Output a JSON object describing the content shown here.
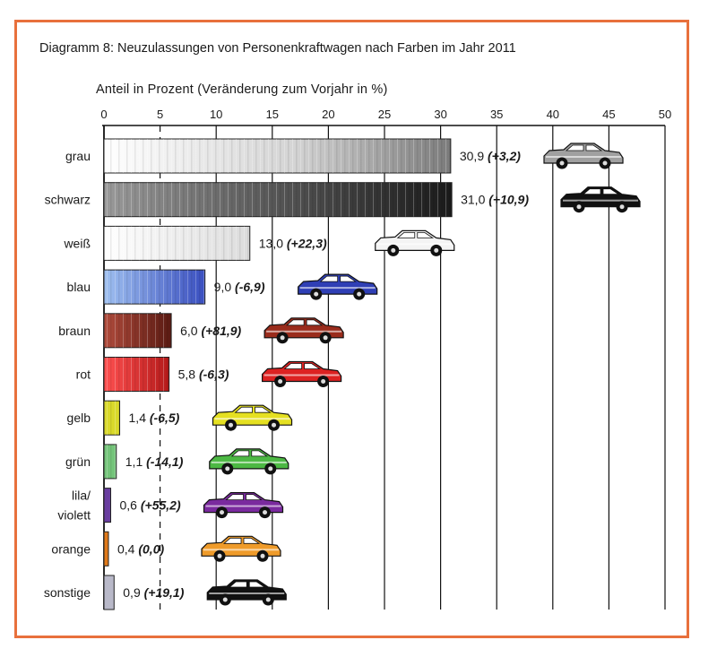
{
  "chart_data": {
    "type": "bar",
    "orientation": "horizontal",
    "title": "Diagramm 8:  Neuzulassungen von Personenkraftwagen nach Farben im Jahr 2011",
    "xlabel": "Anteil in Prozent (Veränderung zum Vorjahr in %)",
    "ylabel": "",
    "xlim": [
      0,
      50
    ],
    "ticks": [
      "0",
      "5",
      "10",
      "15",
      "20",
      "25",
      "30",
      "35",
      "40",
      "45",
      "50"
    ],
    "grid": true,
    "categories": [
      {
        "label": [
          "grau"
        ],
        "value": 30.9,
        "value_text": "30,9",
        "change_text": "(+3,2)",
        "color": "#9a9a9a",
        "car": "#a0a0a0"
      },
      {
        "label": [
          "schwarz"
        ],
        "value": 31.0,
        "value_text": "31,0",
        "change_text": "(+10,9)",
        "color": "#3a3a3a",
        "car": "#111111"
      },
      {
        "label": [
          "weiß"
        ],
        "value": 13.0,
        "value_text": "13,0",
        "change_text": "(+22,3)",
        "color": "#e6e6e6",
        "car": "#f4f4f4"
      },
      {
        "label": [
          "blau"
        ],
        "value": 9.0,
        "value_text": "9,0",
        "change_text": "(-6,9)",
        "color": "#5d7fd6",
        "car": "#2f3fb5"
      },
      {
        "label": [
          "braun"
        ],
        "value": 6.0,
        "value_text": "6,0",
        "change_text": "(+81,9)",
        "color": "#8a2a22",
        "car": "#9a2c1c"
      },
      {
        "label": [
          "rot"
        ],
        "value": 5.8,
        "value_text": "5,8",
        "change_text": "(-6,3)",
        "color": "#dd2b2b",
        "car": "#dd2222"
      },
      {
        "label": [
          "gelb"
        ],
        "value": 1.4,
        "value_text": "1,4",
        "change_text": "(-6,5)",
        "color": "#d9d92a",
        "car": "#e5e021"
      },
      {
        "label": [
          "grün"
        ],
        "value": 1.1,
        "value_text": "1,1",
        "change_text": "(-14,1)",
        "color": "#74c47a",
        "car": "#4cb843"
      },
      {
        "label": [
          "lila/",
          "violett"
        ],
        "value": 0.6,
        "value_text": "0,6",
        "change_text": "(+55,2)",
        "color": "#6a3ea0",
        "car": "#7a2a9e"
      },
      {
        "label": [
          "orange"
        ],
        "value": 0.4,
        "value_text": "0,4",
        "change_text": "(0,0)",
        "color": "#e07a1a",
        "car": "#ef9b2a"
      },
      {
        "label": [
          "sonstige"
        ],
        "value": 0.9,
        "value_text": "0,9",
        "change_text": "(+19,1)",
        "color": "#b9b9c9",
        "car": "#111111"
      }
    ]
  }
}
